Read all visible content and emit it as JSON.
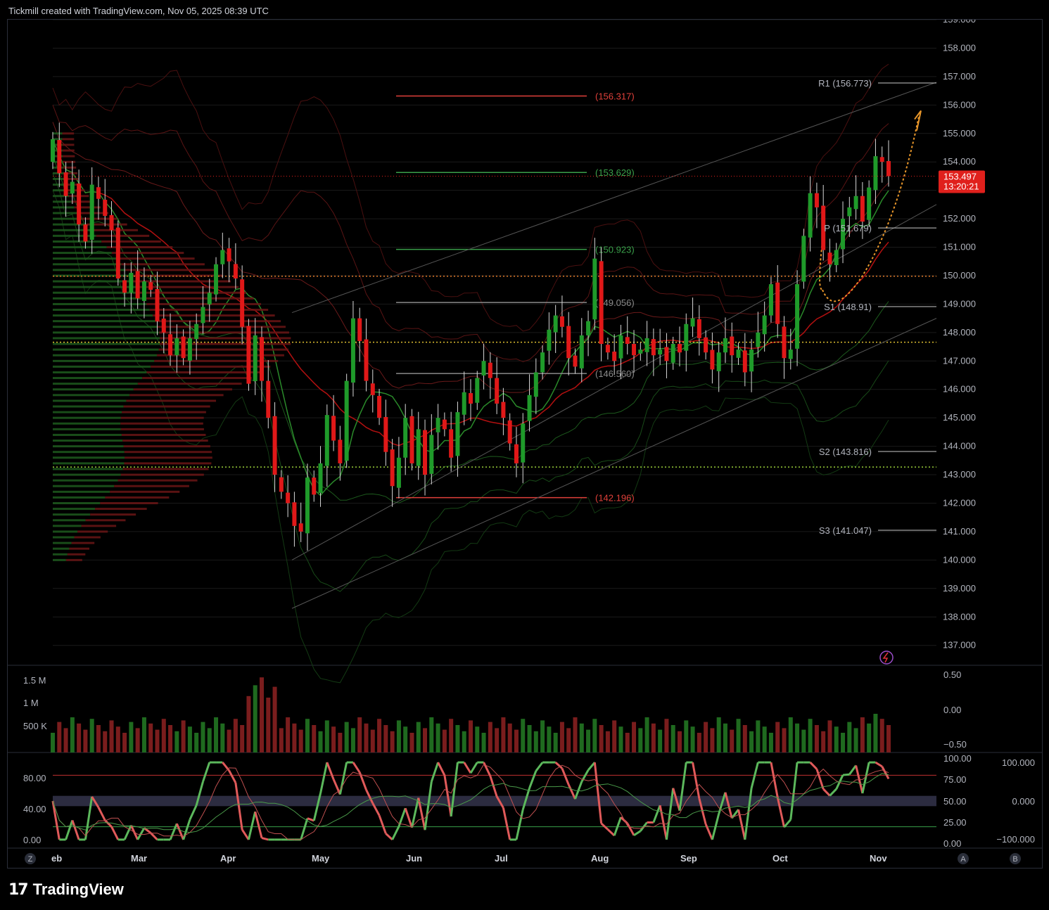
{
  "header": {
    "text": "Tickmill created with TradingView.com, Nov 05, 2025 08:39 UTC"
  },
  "footer": {
    "brand": "TradingView"
  },
  "colors": {
    "bull": "#2e8b2e",
    "bear": "#e0201c",
    "bg": "#000000",
    "grid": "#1a1a1a",
    "axis_text": "#b2b5be",
    "last_badge": "#e0201c"
  },
  "price_axis": {
    "ticks": [
      "159.000",
      "158.000",
      "157.000",
      "156.000",
      "155.000",
      "154.000",
      "153.000",
      "152.000",
      "151.000",
      "150.000",
      "149.000",
      "148.000",
      "147.000",
      "146.000",
      "145.000",
      "144.000",
      "143.000",
      "142.000",
      "141.000",
      "140.000",
      "139.000",
      "138.000",
      "137.000"
    ]
  },
  "time_axis": {
    "labels": [
      "eb",
      "Mar",
      "Apr",
      "May",
      "Jun",
      "Jul",
      "Aug",
      "Sep",
      "Oct",
      "Nov"
    ]
  },
  "last_price": {
    "value": "153.497",
    "countdown": "13:20:21"
  },
  "levels": [
    {
      "label": "(156.317)",
      "value": 156.317,
      "color": "#e0403a"
    },
    {
      "label": "(153.629)",
      "value": 153.629,
      "color": "#3aa04a"
    },
    {
      "label": "(150.923)",
      "value": 150.923,
      "color": "#3aa04a"
    },
    {
      "label": "(149.056)",
      "value": 149.056,
      "color": "#8a8a8a"
    },
    {
      "label": "(146.560)",
      "value": 146.56,
      "color": "#8a8a8a"
    },
    {
      "label": "(142.196)",
      "value": 142.196,
      "color": "#e0403a"
    }
  ],
  "pivots": [
    {
      "label": "R1 (156.773)",
      "value": 156.773
    },
    {
      "label": "P (151.679)",
      "value": 151.679
    },
    {
      "label": "S1 (148.91)",
      "value": 148.91
    },
    {
      "label": "S2 (143.816)",
      "value": 143.816
    },
    {
      "label": "S3 (141.047)",
      "value": 141.047
    }
  ],
  "volume_axis": {
    "ticks": [
      "1.5 M",
      "1 M",
      "500 K"
    ]
  },
  "volume_right_axis": {
    "ticks": [
      "0.50",
      "0.00",
      "−0.50"
    ]
  },
  "osc_left_axis": {
    "ticks": [
      "80.00",
      "40.00",
      "0.00"
    ]
  },
  "osc_right_axis": {
    "ticks": [
      "100.00",
      "75.00",
      "50.00",
      "25.00",
      "0.00"
    ]
  },
  "osc_right2_axis": {
    "ticks": [
      "100.000",
      "0.000",
      "−100.000"
    ]
  },
  "bottom_buttons": {
    "left": "Z",
    "a": "A",
    "b": "B"
  },
  "chart_data": {
    "type": "candlestick",
    "y_range": [
      136.3,
      159.0
    ],
    "closes": [
      154.8,
      153.6,
      152.8,
      153.3,
      151.8,
      151.2,
      153.2,
      152.7,
      152.1,
      151.6,
      149.9,
      149.4,
      150.1,
      149.2,
      149.8,
      149.5,
      148.4,
      148.0,
      147.2,
      147.8,
      147.1,
      147.8,
      148.3,
      148.9,
      149.4,
      150.4,
      150.9,
      150.5,
      149.9,
      148.2,
      146.2,
      147.9,
      146.3,
      145.0,
      143.0,
      142.4,
      142.0,
      141.2,
      141.0,
      142.9,
      142.3,
      143.4,
      145.1,
      144.2,
      143.4,
      146.3,
      148.5,
      147.7,
      146.3,
      145.8,
      145.0,
      143.8,
      142.6,
      143.6,
      145.0,
      143.4,
      144.6,
      143.0,
      144.4,
      145.0,
      144.6,
      143.6,
      145.2,
      145.9,
      145.5,
      146.4,
      147.0,
      146.4,
      145.5,
      145.0,
      144.1,
      143.4,
      144.8,
      145.8,
      146.6,
      147.3,
      148.1,
      148.6,
      148.2,
      147.1,
      146.8,
      147.9,
      148.4,
      150.6,
      147.6,
      147.3,
      147.0,
      147.9,
      147.6,
      147.2,
      147.4,
      147.8,
      147.2,
      147.4,
      147.0,
      147.6,
      147.3,
      148.3,
      148.5,
      147.8,
      147.3,
      146.7,
      147.3,
      147.8,
      147.2,
      147.4,
      146.6,
      147.4,
      148.0,
      148.6,
      149.7,
      148.3,
      147.1,
      147.4,
      149.7,
      151.4,
      152.9,
      152.4,
      150.9,
      150.4,
      150.9,
      152.0,
      152.4,
      152.8,
      151.9,
      153.1,
      154.2,
      154.0,
      153.5
    ],
    "x_labels": [
      "eb",
      "Mar",
      "Apr",
      "May",
      "Jun",
      "Jul",
      "Aug",
      "Sep",
      "Oct",
      "Nov"
    ]
  }
}
